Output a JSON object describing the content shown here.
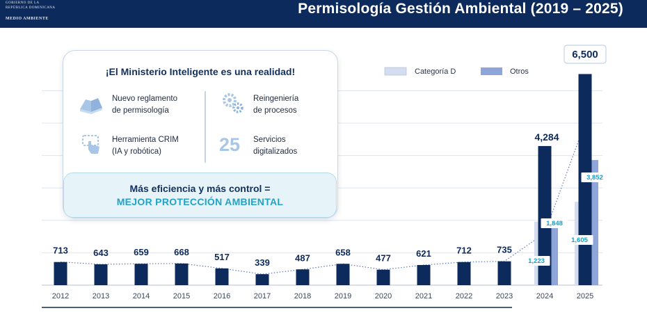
{
  "header": {
    "logo_lines": [
      "GOBIERNO DE LA",
      "REPÚBLICA DOMINICANA",
      "",
      "MEDIO AMBIENTE"
    ],
    "title": "Permisología Gestión Ambiental (2019 – 2025)",
    "background_color": "#0d2a5c"
  },
  "card": {
    "title": "¡El Ministerio Inteligente es una realidad!",
    "features": [
      {
        "icon": "book-icon",
        "text": "Nuevo reglamento\nde permisología"
      },
      {
        "icon": "gears-icon",
        "text": "Reingeniería\nde procesos"
      },
      {
        "icon": "robot-hand-icon",
        "text": "Herramienta CRIM\n(IA y robótica)"
      },
      {
        "icon": "number-25",
        "big": "25",
        "text": "Servicios\ndigitalizados"
      }
    ],
    "callout_line1": "Más eficiencia y más control =",
    "callout_line2": "MEJOR PROTECCIÓN AMBIENTAL"
  },
  "chart_data": {
    "type": "bar",
    "categories": [
      "2012",
      "2013",
      "2014",
      "2015",
      "2016",
      "2017",
      "2018",
      "2019",
      "2020",
      "2021",
      "2022",
      "2023",
      "2024",
      "2025"
    ],
    "totals": [
      713,
      643,
      659,
      668,
      517,
      339,
      487,
      658,
      477,
      621,
      712,
      735,
      4284,
      6500
    ],
    "series": [
      {
        "name": "Categoría D",
        "color": "#d3ddef",
        "values": [
          null,
          null,
          null,
          null,
          null,
          null,
          null,
          null,
          null,
          null,
          null,
          null,
          1223,
          1605
        ]
      },
      {
        "name": "Otros",
        "color": "#8ea5da",
        "values": [
          null,
          null,
          null,
          null,
          null,
          null,
          null,
          null,
          null,
          null,
          null,
          null,
          1848,
          3852
        ]
      }
    ],
    "total_color": "#0d2a5c",
    "label_color": "#0d2a5c",
    "inner_label_color": "#1aa0c4",
    "highlight_total": "6,500",
    "ylim": [
      0,
      7000
    ],
    "grid": true,
    "legend_position": "top-right"
  }
}
